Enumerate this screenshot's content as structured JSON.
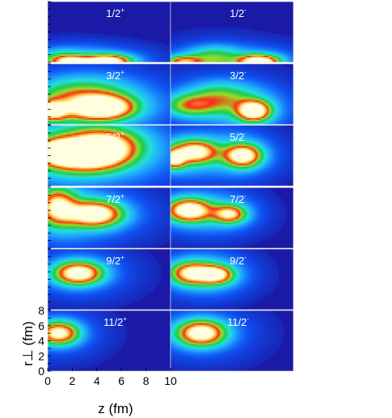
{
  "chart_data": {
    "type": "heatmap",
    "layout": "6 rows x 2 columns of density maps",
    "x_axis": {
      "label": "z (fm)",
      "ticks": [
        "0",
        "2",
        "4",
        "6",
        "8",
        "10"
      ],
      "range": [
        0,
        10
      ]
    },
    "y_axis": {
      "label": "r⊥ (fm)",
      "ticks": [
        "0",
        "2",
        "4",
        "6",
        "8"
      ],
      "range": [
        0,
        8
      ]
    },
    "colormap": [
      "#1a1aa6",
      "#0f4ff0",
      "#1fa6ff",
      "#23e2d6",
      "#22c94a",
      "#9ae02a",
      "#ff2a1a",
      "#ffcf3a",
      "#ffffe0"
    ],
    "panels": [
      {
        "row": 0,
        "col": 0,
        "label": "1/2+",
        "blobs": [
          {
            "z": 4.8,
            "r": 0.1,
            "sz": 1.3,
            "sr": 0.6,
            "a": 1.0
          },
          {
            "z": 2.0,
            "r": 0.1,
            "sz": 0.9,
            "sr": 0.5,
            "a": 0.55
          },
          {
            "z": 1.0,
            "r": 0.2,
            "sz": 1.2,
            "sr": 0.9,
            "a": 0.35
          }
        ]
      },
      {
        "row": 0,
        "col": 1,
        "label": "1/2-",
        "blobs": [
          {
            "z": 7.2,
            "r": 0.1,
            "sz": 1.1,
            "sr": 0.6,
            "a": 1.0
          },
          {
            "z": 1.0,
            "r": 0.1,
            "sz": 1.0,
            "sr": 0.5,
            "a": 0.6
          },
          {
            "z": 3.5,
            "r": 0.6,
            "sz": 1.5,
            "sr": 1.1,
            "a": 0.35
          }
        ]
      },
      {
        "row": 1,
        "col": 0,
        "label": "3/2+",
        "blobs": [
          {
            "z": 4.5,
            "r": 2.2,
            "sz": 1.6,
            "sr": 1.0,
            "a": 1.0
          },
          {
            "z": 0.3,
            "r": 1.8,
            "sz": 0.8,
            "sr": 0.8,
            "a": 0.8
          },
          {
            "z": 3.0,
            "r": 3.5,
            "sz": 2.5,
            "sr": 1.8,
            "a": 0.45
          }
        ]
      },
      {
        "row": 1,
        "col": 1,
        "label": "3/2-",
        "blobs": [
          {
            "z": 6.8,
            "r": 1.8,
            "sz": 0.9,
            "sr": 0.9,
            "a": 1.0
          },
          {
            "z": 1.5,
            "r": 2.5,
            "sz": 1.4,
            "sr": 1.0,
            "a": 0.45
          },
          {
            "z": 4.0,
            "r": 3.5,
            "sz": 1.8,
            "sr": 1.4,
            "a": 0.4
          }
        ]
      },
      {
        "row": 2,
        "col": 0,
        "label": "5/2+",
        "blobs": [
          {
            "z": 3.2,
            "r": 4.0,
            "sz": 2.0,
            "sr": 1.3,
            "a": 1.0
          },
          {
            "z": 0.8,
            "r": 4.5,
            "sz": 1.0,
            "sr": 1.0,
            "a": 0.8
          },
          {
            "z": 4.5,
            "r": 5.5,
            "sz": 2.0,
            "sr": 1.5,
            "a": 0.7
          }
        ]
      },
      {
        "row": 2,
        "col": 1,
        "label": "5/2-",
        "blobs": [
          {
            "z": 5.9,
            "r": 4.0,
            "sz": 1.0,
            "sr": 1.0,
            "a": 0.95
          },
          {
            "z": 2.0,
            "r": 4.5,
            "sz": 1.2,
            "sr": 1.0,
            "a": 0.85
          },
          {
            "z": 0.3,
            "r": 3.5,
            "sz": 0.6,
            "sr": 0.8,
            "a": 0.75
          }
        ]
      },
      {
        "row": 3,
        "col": 0,
        "label": "7/2+",
        "blobs": [
          {
            "z": 3.8,
            "r": 4.5,
            "sz": 1.5,
            "sr": 1.1,
            "a": 1.0
          },
          {
            "z": 0.8,
            "r": 5.5,
            "sz": 1.0,
            "sr": 1.6,
            "a": 0.75
          }
        ]
      },
      {
        "row": 3,
        "col": 1,
        "label": "7/2-",
        "blobs": [
          {
            "z": 1.5,
            "r": 5.0,
            "sz": 1.2,
            "sr": 1.0,
            "a": 1.0
          },
          {
            "z": 4.8,
            "r": 4.5,
            "sz": 0.9,
            "sr": 0.8,
            "a": 0.75
          }
        ]
      },
      {
        "row": 4,
        "col": 0,
        "label": "9/2+",
        "blobs": [
          {
            "z": 2.5,
            "r": 4.8,
            "sz": 1.3,
            "sr": 1.0,
            "a": 1.0
          }
        ]
      },
      {
        "row": 4,
        "col": 1,
        "label": "9/2-",
        "blobs": [
          {
            "z": 1.8,
            "r": 4.8,
            "sz": 1.2,
            "sr": 1.0,
            "a": 0.85
          },
          {
            "z": 3.8,
            "r": 4.6,
            "sz": 0.9,
            "sr": 0.8,
            "a": 0.75
          }
        ]
      },
      {
        "row": 5,
        "col": 0,
        "label": "11/2+",
        "blobs": [
          {
            "z": 0.9,
            "r": 5.0,
            "sz": 1.1,
            "sr": 1.0,
            "a": 0.9
          }
        ]
      },
      {
        "row": 5,
        "col": 1,
        "label": "11/2-",
        "blobs": [
          {
            "z": 2.5,
            "r": 5.0,
            "sz": 1.3,
            "sr": 1.1,
            "a": 1.0
          }
        ]
      }
    ]
  }
}
